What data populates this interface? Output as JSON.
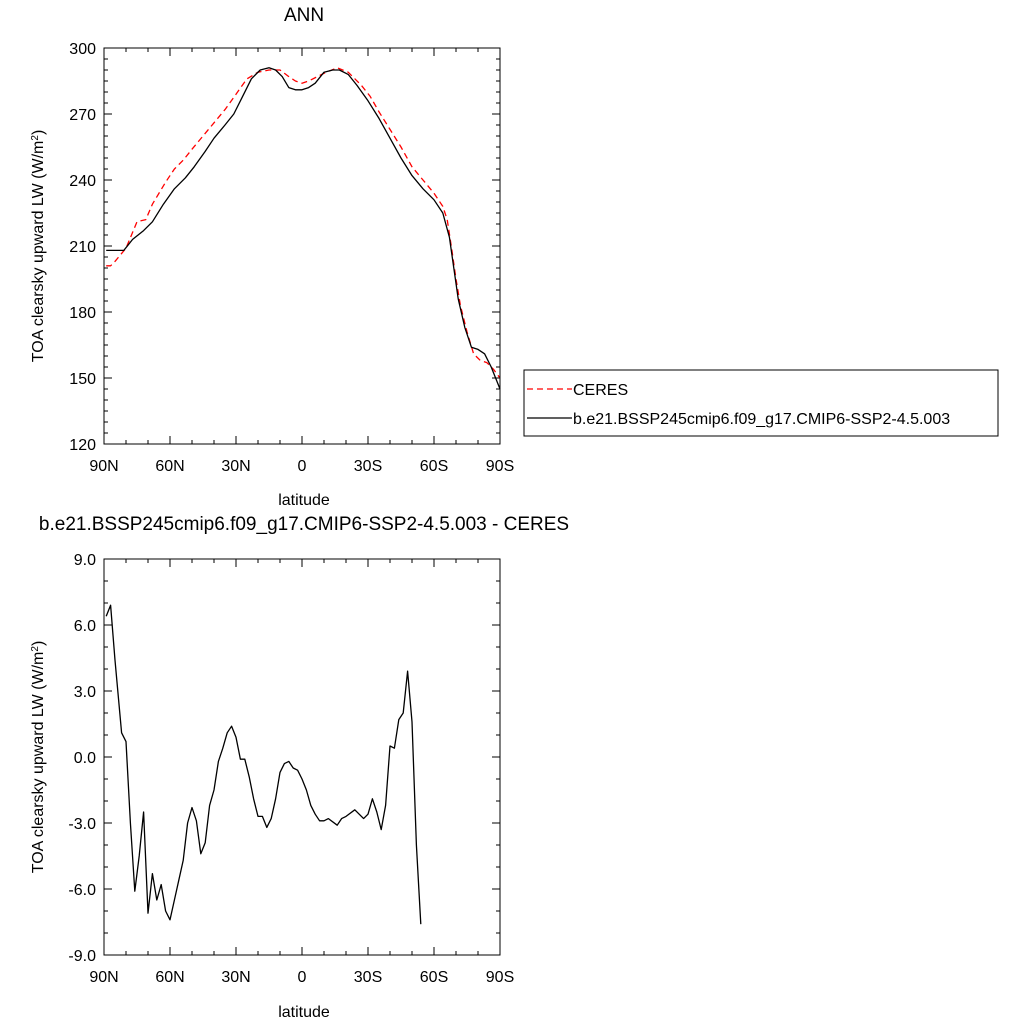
{
  "chart_data": [
    {
      "type": "line",
      "title": "ANN",
      "xlabel": "latitude",
      "ylabel": "TOA clearsky upward LW (W/m",
      "ylabel_sup": "2",
      "ylabel_end": ")",
      "xlim": [
        -90,
        90
      ],
      "ylim": [
        120,
        300
      ],
      "x_ticks": [
        {
          "value": -90,
          "label": "90N"
        },
        {
          "value": -60,
          "label": "60N"
        },
        {
          "value": -30,
          "label": "30N"
        },
        {
          "value": 0,
          "label": "0"
        },
        {
          "value": 30,
          "label": "30S"
        },
        {
          "value": 60,
          "label": "60S"
        },
        {
          "value": 90,
          "label": "90S"
        }
      ],
      "y_ticks": [
        {
          "value": 120,
          "label": "120"
        },
        {
          "value": 150,
          "label": "150"
        },
        {
          "value": 180,
          "label": "180"
        },
        {
          "value": 210,
          "label": "210"
        },
        {
          "value": 240,
          "label": "240"
        },
        {
          "value": 270,
          "label": "270"
        },
        {
          "value": 300,
          "label": "300"
        }
      ],
      "grid": false,
      "legend_position": "right, outside plot, lower portion",
      "series": [
        {
          "name": "CERES",
          "color": "#ff0000",
          "dash": "dashed",
          "points": [
            [
              -89,
              201
            ],
            [
              -87,
              201
            ],
            [
              -85,
              203
            ],
            [
              -80,
              209
            ],
            [
              -75,
              221
            ],
            [
              -71,
              222
            ],
            [
              -68,
              229
            ],
            [
              -62,
              239
            ],
            [
              -58,
              245
            ],
            [
              -54,
              249
            ],
            [
              -50,
              254
            ],
            [
              -45,
              260
            ],
            [
              -40,
              266
            ],
            [
              -35,
              272
            ],
            [
              -30,
              279
            ],
            [
              -25,
              286
            ],
            [
              -20,
              289
            ],
            [
              -15,
              290
            ],
            [
              -10,
              290
            ],
            [
              -6,
              287
            ],
            [
              -3,
              285
            ],
            [
              0,
              284
            ],
            [
              3,
              285
            ],
            [
              7,
              287
            ],
            [
              11,
              289
            ],
            [
              16,
              291
            ],
            [
              21,
              289
            ],
            [
              27,
              283
            ],
            [
              31,
              278
            ],
            [
              35,
              271
            ],
            [
              40,
              263
            ],
            [
              45,
              255
            ],
            [
              50,
              246
            ],
            [
              55,
              240
            ],
            [
              60,
              234
            ],
            [
              64,
              228
            ],
            [
              66,
              222
            ],
            [
              68,
              209
            ],
            [
              70,
              195
            ],
            [
              72,
              183
            ],
            [
              75,
              171
            ],
            [
              78,
              161
            ],
            [
              81,
              158
            ],
            [
              84,
              157
            ],
            [
              87,
              154
            ],
            [
              90,
              150
            ]
          ]
        },
        {
          "name": "b.e21.BSSP245cmip6.f09_g17.CMIP6-SSP2-4.5.003",
          "color": "#000000",
          "dash": "solid",
          "points": [
            [
              -89,
              208
            ],
            [
              -85,
              208
            ],
            [
              -81,
              208
            ],
            [
              -77,
              213
            ],
            [
              -72,
              217
            ],
            [
              -68,
              221
            ],
            [
              -63,
              229
            ],
            [
              -58,
              236
            ],
            [
              -53,
              241
            ],
            [
              -49,
              246
            ],
            [
              -44,
              253
            ],
            [
              -40,
              259
            ],
            [
              -35,
              265
            ],
            [
              -31,
              270
            ],
            [
              -27,
              278
            ],
            [
              -23,
              286
            ],
            [
              -19,
              290
            ],
            [
              -15,
              291
            ],
            [
              -12,
              290
            ],
            [
              -9,
              287
            ],
            [
              -6,
              282
            ],
            [
              -3,
              281
            ],
            [
              0,
              281
            ],
            [
              3,
              282
            ],
            [
              6,
              284
            ],
            [
              10,
              289
            ],
            [
              14,
              290
            ],
            [
              17,
              290
            ],
            [
              21,
              288
            ],
            [
              25,
              283
            ],
            [
              30,
              276
            ],
            [
              35,
              268
            ],
            [
              40,
              259
            ],
            [
              45,
              250
            ],
            [
              50,
              242
            ],
            [
              55,
              236
            ],
            [
              60,
              231
            ],
            [
              64,
              225
            ],
            [
              67,
              214
            ],
            [
              69,
              200
            ],
            [
              71,
              186
            ],
            [
              74,
              173
            ],
            [
              77,
              164
            ],
            [
              80,
              163
            ],
            [
              83,
              161
            ],
            [
              86,
              155
            ],
            [
              88,
              150
            ],
            [
              90,
              145
            ]
          ]
        }
      ]
    },
    {
      "type": "line",
      "title": "b.e21.BSSP245cmip6.f09_g17.CMIP6-SSP2-4.5.003 - CERES",
      "xlabel": "latitude",
      "ylabel": "TOA clearsky upward LW (W/m",
      "ylabel_sup": "2",
      "ylabel_end": ")",
      "xlim": [
        -90,
        90
      ],
      "ylim": [
        -9,
        9
      ],
      "x_ticks": [
        {
          "value": -90,
          "label": "90N"
        },
        {
          "value": -60,
          "label": "60N"
        },
        {
          "value": -30,
          "label": "30N"
        },
        {
          "value": 0,
          "label": "0"
        },
        {
          "value": 30,
          "label": "30S"
        },
        {
          "value": 60,
          "label": "60S"
        },
        {
          "value": 90,
          "label": "90S"
        }
      ],
      "y_ticks": [
        {
          "value": -9,
          "label": "-9.0"
        },
        {
          "value": -6,
          "label": "-6.0"
        },
        {
          "value": -3,
          "label": "-3.0"
        },
        {
          "value": 0,
          "label": "0.0"
        },
        {
          "value": 3,
          "label": "3.0"
        },
        {
          "value": 6,
          "label": "6.0"
        },
        {
          "value": 9,
          "label": "9.0"
        }
      ],
      "grid": false,
      "series": [
        {
          "color": "#000000",
          "dash": "solid",
          "points": [
            [
              -89,
              6.4
            ],
            [
              -87,
              6.9
            ],
            [
              -85,
              4.4
            ],
            [
              -82,
              1.1
            ],
            [
              -80,
              0.7
            ],
            [
              -78,
              -3.0
            ],
            [
              -76,
              -6.1
            ],
            [
              -74,
              -4.5
            ],
            [
              -72,
              -2.5
            ],
            [
              -70,
              -7.1
            ],
            [
              -68,
              -5.3
            ],
            [
              -66,
              -6.5
            ],
            [
              -64,
              -5.8
            ],
            [
              -62,
              -7.0
            ],
            [
              -60,
              -7.4
            ],
            [
              -58,
              -6.5
            ],
            [
              -56,
              -5.6
            ],
            [
              -54,
              -4.7
            ],
            [
              -52,
              -3.0
            ],
            [
              -50,
              -2.3
            ],
            [
              -48,
              -2.9
            ],
            [
              -46,
              -4.4
            ],
            [
              -44,
              -3.9
            ],
            [
              -42,
              -2.2
            ],
            [
              -40,
              -1.5
            ],
            [
              -38,
              -0.2
            ],
            [
              -36,
              0.4
            ],
            [
              -34,
              1.1
            ],
            [
              -32,
              1.4
            ],
            [
              -30,
              0.9
            ],
            [
              -28,
              -0.1
            ],
            [
              -26,
              -0.1
            ],
            [
              -24,
              -0.9
            ],
            [
              -22,
              -1.9
            ],
            [
              -20,
              -2.7
            ],
            [
              -18,
              -2.7
            ],
            [
              -16,
              -3.2
            ],
            [
              -14,
              -2.8
            ],
            [
              -12,
              -1.9
            ],
            [
              -10,
              -0.7
            ],
            [
              -8,
              -0.3
            ],
            [
              -6,
              -0.2
            ],
            [
              -4,
              -0.5
            ],
            [
              -2,
              -0.6
            ],
            [
              0,
              -1.0
            ],
            [
              2,
              -1.5
            ],
            [
              4,
              -2.2
            ],
            [
              6,
              -2.6
            ],
            [
              8,
              -2.9
            ],
            [
              10,
              -2.9
            ],
            [
              12,
              -2.8
            ],
            [
              16,
              -3.1
            ],
            [
              18,
              -2.8
            ],
            [
              20,
              -2.7
            ],
            [
              24,
              -2.4
            ],
            [
              26,
              -2.6
            ],
            [
              28,
              -2.8
            ],
            [
              30,
              -2.6
            ],
            [
              32,
              -1.9
            ],
            [
              34,
              -2.5
            ],
            [
              36,
              -3.3
            ],
            [
              38,
              -2.2
            ],
            [
              40,
              0.5
            ],
            [
              42,
              0.4
            ],
            [
              44,
              1.7
            ],
            [
              46,
              2.0
            ],
            [
              48,
              3.9
            ],
            [
              50,
              1.6
            ],
            [
              52,
              -4.0
            ],
            [
              54,
              -7.6
            ]
          ]
        }
      ]
    }
  ]
}
